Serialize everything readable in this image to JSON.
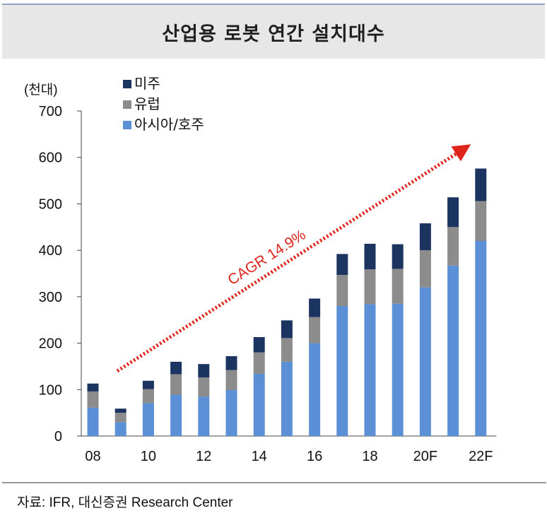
{
  "chart_data": {
    "type": "bar",
    "stacked": true,
    "title": "산업용 로봇 연간 설치대수",
    "ylabel": "(천대)",
    "ylim": [
      0,
      700
    ],
    "yticks": [
      "0",
      "100",
      "200",
      "300",
      "400",
      "500",
      "600",
      "700"
    ],
    "categories": [
      "08",
      "09",
      "10",
      "11",
      "12",
      "13",
      "14",
      "15",
      "16",
      "17",
      "18",
      "19",
      "20F",
      "21F",
      "22F"
    ],
    "xtick_labels": [
      "08",
      "",
      "10",
      "",
      "12",
      "",
      "14",
      "",
      "16",
      "",
      "18",
      "",
      "20F",
      "",
      "22F"
    ],
    "series": [
      {
        "name": "아시아/호주",
        "color": "#5b8fd6",
        "values": [
          61,
          30,
          71,
          89,
          85,
          99,
          134,
          160,
          200,
          280,
          284,
          285,
          320,
          367,
          420
        ]
      },
      {
        "name": "유럽",
        "color": "#8c8c8c",
        "values": [
          35,
          20,
          30,
          44,
          41,
          43,
          46,
          51,
          56,
          67,
          75,
          75,
          80,
          83,
          86
        ]
      },
      {
        "name": "미주",
        "color": "#1c3560",
        "values": [
          17,
          9,
          18,
          27,
          29,
          30,
          33,
          38,
          40,
          45,
          55,
          53,
          58,
          64,
          70
        ]
      }
    ],
    "legend": {
      "position": "top-left",
      "order": [
        "미주",
        "유럽",
        "아시아/호주"
      ]
    },
    "annotation": {
      "text": "CAGR 14.9%",
      "color": "#e0241b",
      "style": "dotted arrow"
    },
    "grid": false
  },
  "source_note": "자료: IFR, 대신증권 Research Center"
}
